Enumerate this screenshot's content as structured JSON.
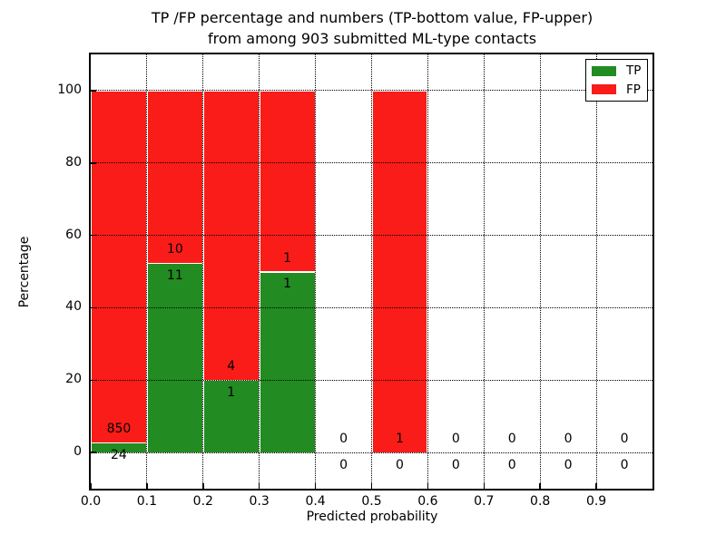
{
  "figure": {
    "title_line1": "TP /FP percentage and numbers (TP-bottom value, FP-upper)",
    "title_line2": "from among 903 submitted ML-type contacts"
  },
  "chart_data": {
    "type": "bar",
    "subtype": "stacked-percentage",
    "title": "TP /FP percentage and numbers (TP-bottom value, FP-upper)\nfrom among 903 submitted ML-type contacts",
    "xlabel": "Predicted probability",
    "ylabel": "Percentage",
    "total_contacts": 903,
    "xlim": [
      0.0,
      1.0
    ],
    "ylim": [
      -10,
      110
    ],
    "x_tick_labels": [
      "0.0",
      "0.1",
      "0.2",
      "0.3",
      "0.4",
      "0.5",
      "0.6",
      "0.7",
      "0.8",
      "0.9"
    ],
    "x_tick_values": [
      0.0,
      0.1,
      0.2,
      0.3,
      0.4,
      0.5,
      0.6,
      0.7,
      0.8,
      0.9
    ],
    "y_tick_values": [
      0,
      20,
      40,
      60,
      80,
      100
    ],
    "grid": true,
    "grid_style": "dotted",
    "colors": {
      "tp": "#228b22",
      "fp": "#fa1c18",
      "bar_edge": "#ffffff"
    },
    "legend": {
      "position": "upper-right",
      "entries": [
        {
          "label": "TP",
          "color": "#228b22"
        },
        {
          "label": "FP",
          "color": "#fa1c18"
        }
      ]
    },
    "bins": [
      {
        "range": [
          0.0,
          0.1
        ],
        "tp": 24,
        "fp": 850
      },
      {
        "range": [
          0.1,
          0.2
        ],
        "tp": 11,
        "fp": 10
      },
      {
        "range": [
          0.2,
          0.3
        ],
        "tp": 1,
        "fp": 4
      },
      {
        "range": [
          0.3,
          0.4
        ],
        "tp": 1,
        "fp": 1
      },
      {
        "range": [
          0.4,
          0.5
        ],
        "tp": 0,
        "fp": 0
      },
      {
        "range": [
          0.5,
          0.6
        ],
        "tp": 0,
        "fp": 1
      },
      {
        "range": [
          0.6,
          0.7
        ],
        "tp": 0,
        "fp": 0
      },
      {
        "range": [
          0.7,
          0.8
        ],
        "tp": 0,
        "fp": 0
      },
      {
        "range": [
          0.8,
          0.9
        ],
        "tp": 0,
        "fp": 0
      },
      {
        "range": [
          0.9,
          1.0
        ],
        "tp": 0,
        "fp": 0
      }
    ]
  }
}
